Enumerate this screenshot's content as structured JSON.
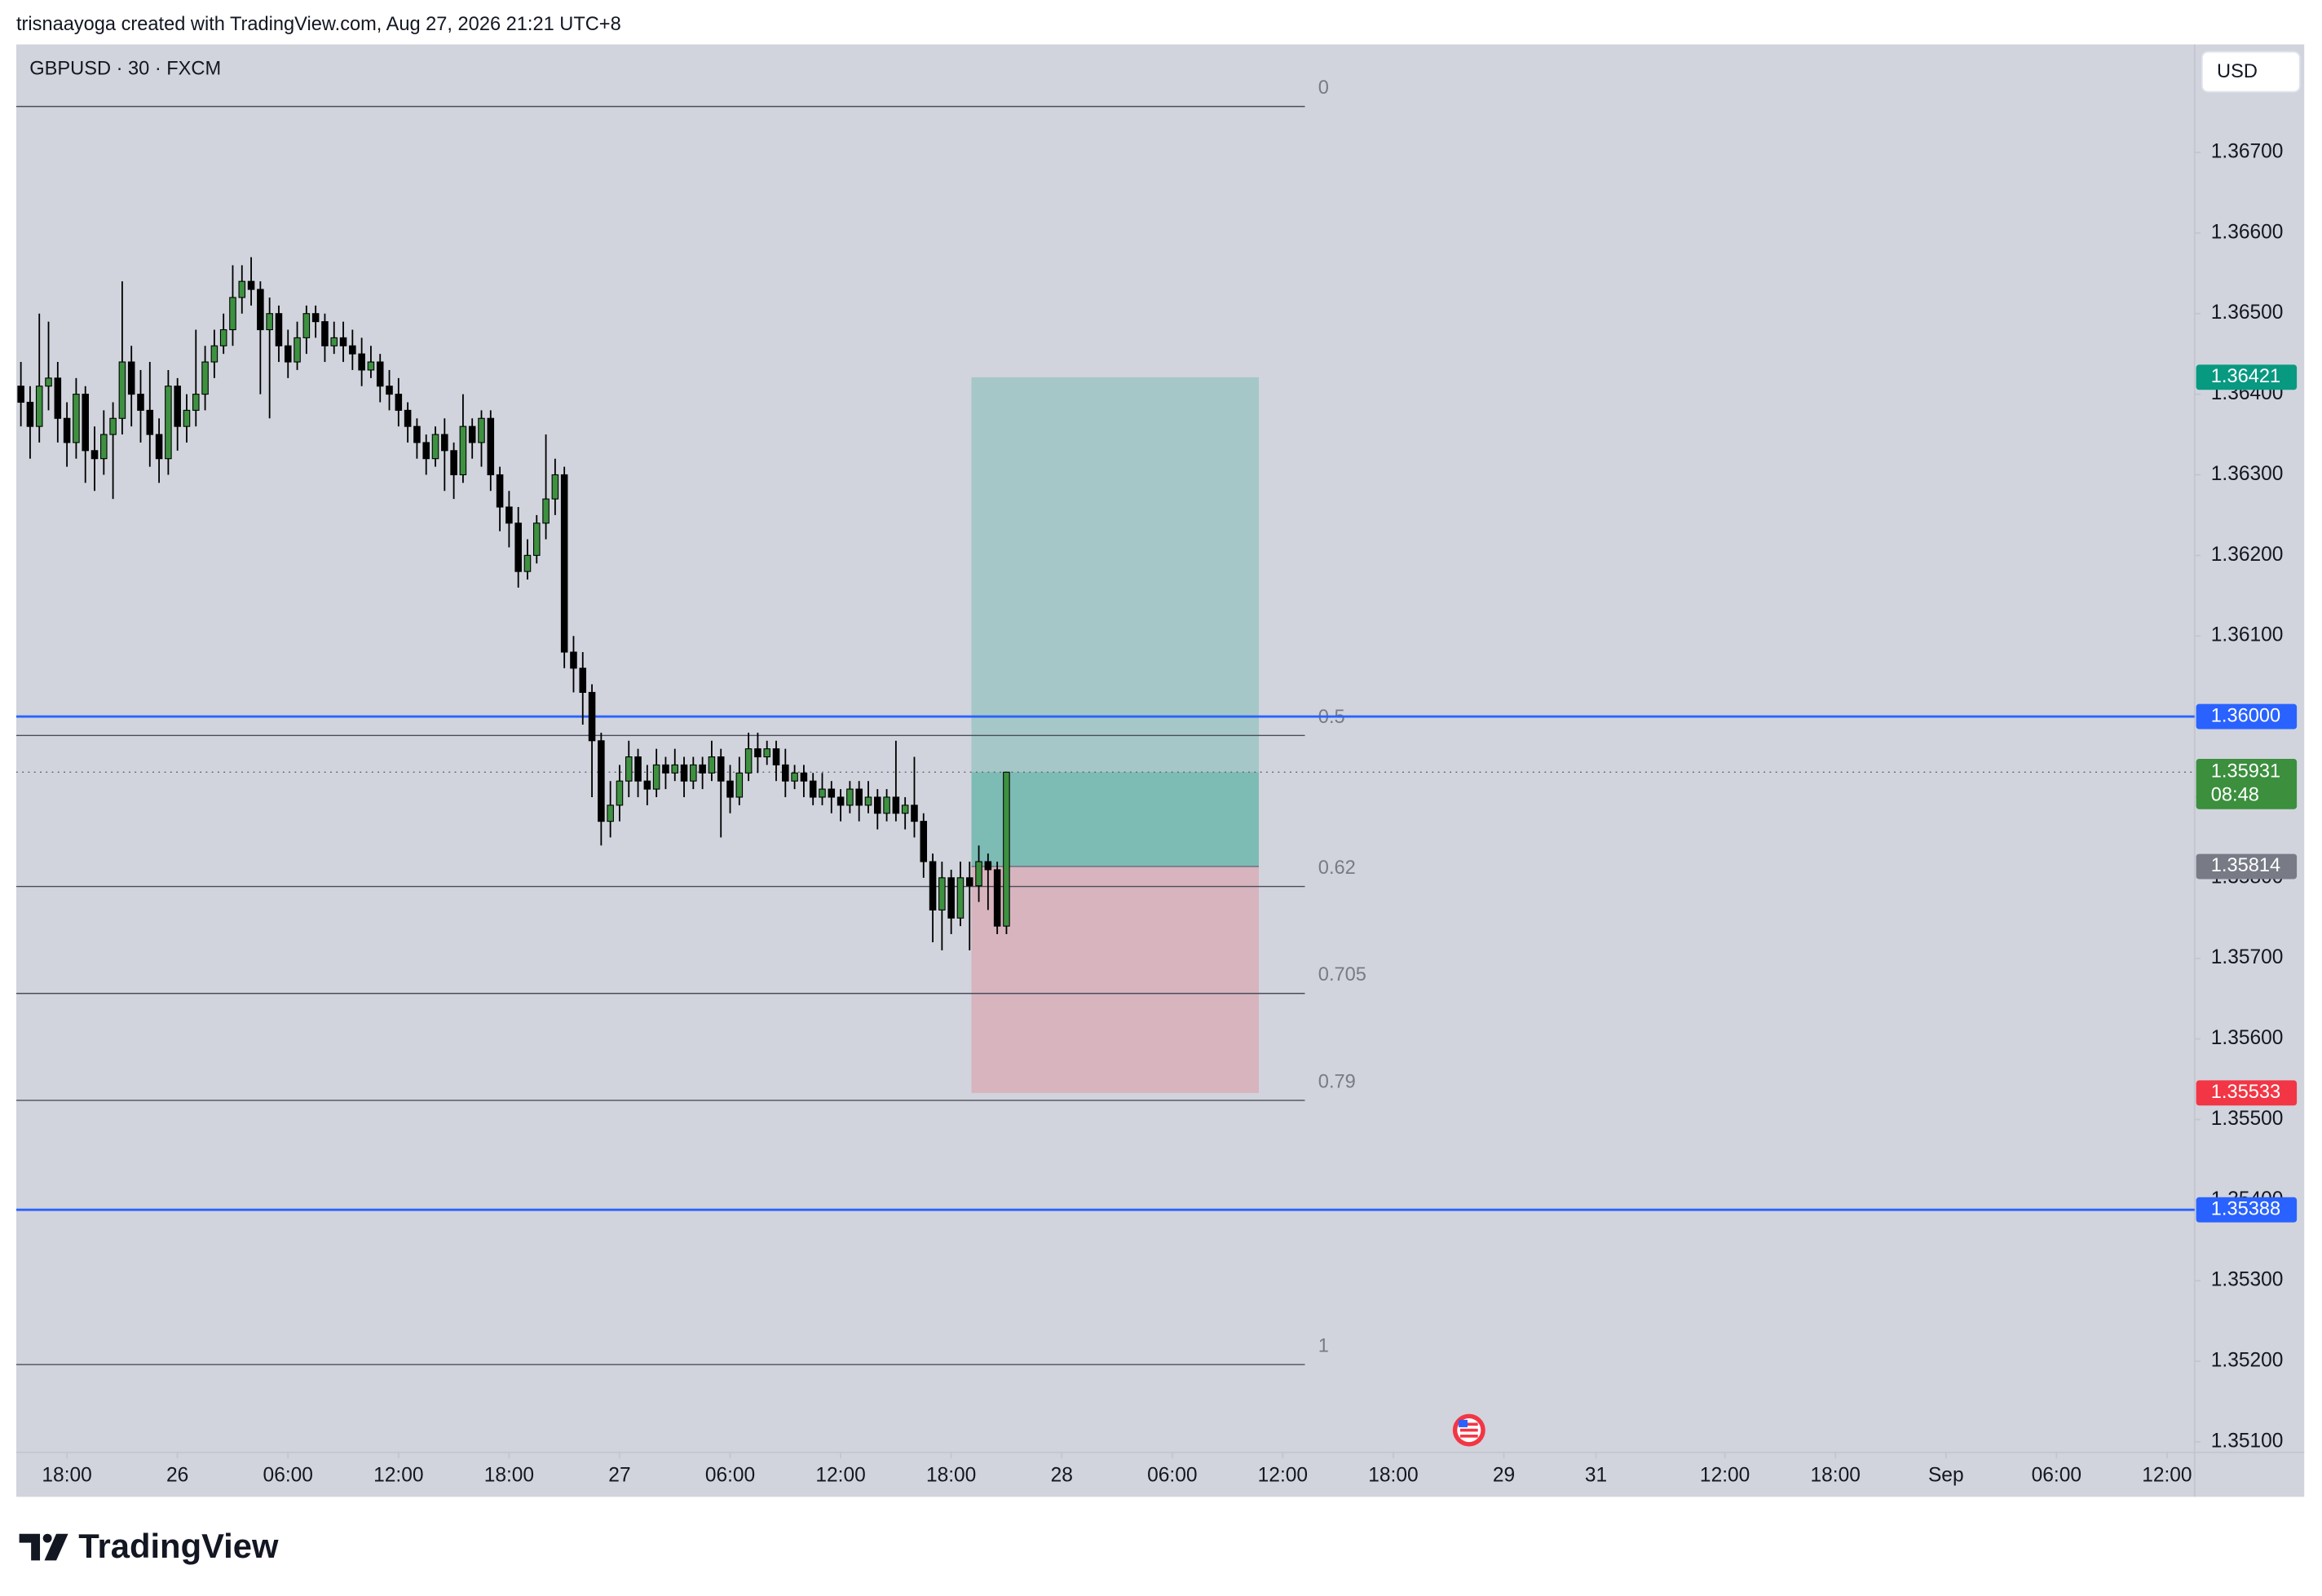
{
  "header": {
    "attribution": "trisnaayoga created with TradingView.com, Aug 27, 2026 21:21 UTC+8",
    "currency_button": "USD",
    "logo": "TradingView"
  },
  "chart_data": {
    "type": "candlestick",
    "title": "GBPUSD · 30 · FXCM",
    "up_color": "#3d9140",
    "down_color": "#000000",
    "open": [
      1.3641,
      1.3639,
      1.3636,
      1.3641,
      1.3642,
      1.3637,
      1.3634,
      1.364,
      1.3633,
      1.3632,
      1.3635,
      1.3637,
      1.3644,
      1.364,
      1.3638,
      1.3635,
      1.3632,
      1.3641,
      1.3636,
      1.3638,
      1.364,
      1.3644,
      1.3646,
      1.3648,
      1.3652,
      1.3654,
      1.3653,
      1.3648,
      1.365,
      1.3646,
      1.3644,
      1.3647,
      1.365,
      1.3649,
      1.3646,
      1.3647,
      1.3646,
      1.3645,
      1.3643,
      1.3644,
      1.3641,
      1.364,
      1.3638,
      1.3636,
      1.3634,
      1.3632,
      1.3635,
      1.3633,
      1.363,
      1.3636,
      1.3634,
      1.3637,
      1.363,
      1.3626,
      1.3624,
      1.3618,
      1.362,
      1.3624,
      1.3627,
      1.363,
      1.3608,
      1.3606,
      1.3603,
      1.3597,
      1.3587,
      1.3589,
      1.3592,
      1.3595,
      1.3592,
      1.3591,
      1.3594,
      1.3593,
      1.3594,
      1.3592,
      1.3594,
      1.3593,
      1.3595,
      1.3592,
      1.359,
      1.3593,
      1.3596,
      1.3595,
      1.3596,
      1.3594,
      1.3592,
      1.3593,
      1.3592,
      1.359,
      1.3591,
      1.359,
      1.3589,
      1.3591,
      1.3589,
      1.359,
      1.3588,
      1.359,
      1.3588,
      1.3589,
      1.3587,
      1.3582,
      1.3576,
      1.358,
      1.3575,
      1.358,
      1.3579,
      1.3582,
      1.3581,
      1.3574
    ],
    "high": [
      1.3644,
      1.3641,
      1.365,
      1.3649,
      1.3644,
      1.3639,
      1.3642,
      1.3641,
      1.3636,
      1.3638,
      1.3639,
      1.3654,
      1.3646,
      1.3643,
      1.3644,
      1.3637,
      1.3643,
      1.3642,
      1.364,
      1.3648,
      1.3646,
      1.3648,
      1.365,
      1.3656,
      1.3656,
      1.3657,
      1.3654,
      1.3652,
      1.3651,
      1.3648,
      1.3649,
      1.3651,
      1.3651,
      1.365,
      1.3649,
      1.3649,
      1.3648,
      1.3647,
      1.3646,
      1.3645,
      1.3643,
      1.3642,
      1.3639,
      1.3637,
      1.3635,
      1.3636,
      1.3637,
      1.3634,
      1.364,
      1.3637,
      1.3638,
      1.3638,
      1.3631,
      1.3628,
      1.3626,
      1.3622,
      1.3625,
      1.3635,
      1.3632,
      1.3631,
      1.361,
      1.3608,
      1.3604,
      1.3598,
      1.3592,
      1.3594,
      1.3597,
      1.3596,
      1.3594,
      1.3596,
      1.3595,
      1.3596,
      1.3595,
      1.3595,
      1.3595,
      1.3597,
      1.3596,
      1.3594,
      1.3595,
      1.3598,
      1.3598,
      1.3597,
      1.3597,
      1.3596,
      1.3594,
      1.3594,
      1.3593,
      1.3593,
      1.3592,
      1.3591,
      1.3592,
      1.3592,
      1.3592,
      1.3591,
      1.3591,
      1.3597,
      1.359,
      1.3595,
      1.3588,
      1.3583,
      1.3582,
      1.3581,
      1.3582,
      1.3582,
      1.3584,
      1.3583,
      1.3582,
      1.35931
    ],
    "low": [
      1.3636,
      1.3632,
      1.3634,
      1.3638,
      1.3634,
      1.3631,
      1.3632,
      1.3629,
      1.3628,
      1.363,
      1.3627,
      1.3635,
      1.3636,
      1.3634,
      1.3631,
      1.3629,
      1.363,
      1.3633,
      1.3634,
      1.3636,
      1.3638,
      1.3642,
      1.3645,
      1.3646,
      1.365,
      1.3651,
      1.364,
      1.3637,
      1.3644,
      1.3642,
      1.3643,
      1.3645,
      1.3647,
      1.3644,
      1.3645,
      1.3644,
      1.3643,
      1.3641,
      1.3642,
      1.3639,
      1.3638,
      1.3636,
      1.3634,
      1.3632,
      1.363,
      1.3631,
      1.3628,
      1.3627,
      1.3629,
      1.3632,
      1.3631,
      1.3628,
      1.3623,
      1.3621,
      1.3616,
      1.3617,
      1.3619,
      1.3622,
      1.3625,
      1.3606,
      1.3603,
      1.3599,
      1.359,
      1.3584,
      1.3585,
      1.3587,
      1.359,
      1.359,
      1.3589,
      1.359,
      1.3591,
      1.3592,
      1.359,
      1.3591,
      1.3591,
      1.3592,
      1.3585,
      1.3588,
      1.3589,
      1.3592,
      1.3593,
      1.3594,
      1.3592,
      1.359,
      1.3591,
      1.359,
      1.3589,
      1.3589,
      1.3588,
      1.3587,
      1.3588,
      1.3587,
      1.3588,
      1.3586,
      1.3587,
      1.3587,
      1.3586,
      1.3585,
      1.358,
      1.3572,
      1.3571,
      1.3573,
      1.3574,
      1.3571,
      1.3577,
      1.3576,
      1.3573,
      1.3573
    ],
    "close": [
      1.3639,
      1.3636,
      1.3641,
      1.3642,
      1.3637,
      1.3634,
      1.364,
      1.3633,
      1.3632,
      1.3635,
      1.3637,
      1.3644,
      1.364,
      1.3638,
      1.3635,
      1.3632,
      1.3641,
      1.3636,
      1.3638,
      1.364,
      1.3644,
      1.3646,
      1.3648,
      1.3652,
      1.3654,
      1.3653,
      1.3648,
      1.365,
      1.3646,
      1.3644,
      1.3647,
      1.365,
      1.3649,
      1.3646,
      1.3647,
      1.3646,
      1.3645,
      1.3643,
      1.3644,
      1.3641,
      1.364,
      1.3638,
      1.3636,
      1.3634,
      1.3632,
      1.3635,
      1.3633,
      1.363,
      1.3636,
      1.3634,
      1.3637,
      1.363,
      1.3626,
      1.3624,
      1.3618,
      1.362,
      1.3624,
      1.3627,
      1.363,
      1.3608,
      1.3606,
      1.3603,
      1.3597,
      1.3587,
      1.3589,
      1.3592,
      1.3595,
      1.3592,
      1.3591,
      1.3594,
      1.3593,
      1.3594,
      1.3592,
      1.3594,
      1.3593,
      1.3595,
      1.3592,
      1.359,
      1.3593,
      1.3596,
      1.3595,
      1.3596,
      1.3594,
      1.3592,
      1.3593,
      1.3592,
      1.359,
      1.3591,
      1.359,
      1.3589,
      1.3591,
      1.3589,
      1.359,
      1.3588,
      1.359,
      1.3588,
      1.3589,
      1.3587,
      1.3582,
      1.3576,
      1.358,
      1.3575,
      1.358,
      1.3579,
      1.3582,
      1.3581,
      1.3574,
      1.35931
    ],
    "xlim": [
      -0.5,
      236
    ],
    "xticks": [
      {
        "value": 5,
        "label": "18:00"
      },
      {
        "value": 17,
        "label": "26"
      },
      {
        "value": 29,
        "label": "06:00"
      },
      {
        "value": 41,
        "label": "12:00"
      },
      {
        "value": 53,
        "label": "18:00"
      },
      {
        "value": 65,
        "label": "27"
      },
      {
        "value": 77,
        "label": "06:00"
      },
      {
        "value": 89,
        "label": "12:00"
      },
      {
        "value": 101,
        "label": "18:00"
      },
      {
        "value": 113,
        "label": "28"
      },
      {
        "value": 125,
        "label": "06:00"
      },
      {
        "value": 137,
        "label": "12:00"
      },
      {
        "value": 149,
        "label": "18:00"
      },
      {
        "value": 161,
        "label": "29"
      },
      {
        "value": 171,
        "label": "31"
      },
      {
        "value": 185,
        "label": "12:00"
      },
      {
        "value": 197,
        "label": "18:00"
      },
      {
        "value": 209,
        "label": "Sep"
      },
      {
        "value": 221,
        "label": "06:00"
      },
      {
        "value": 233,
        "label": "12:00"
      }
    ],
    "ylim": [
      1.35087,
      1.36834
    ],
    "yticks": [
      {
        "value": 1.351,
        "label": "1.35100"
      },
      {
        "value": 1.352,
        "label": "1.35200"
      },
      {
        "value": 1.353,
        "label": "1.35300"
      },
      {
        "value": 1.354,
        "label": "1.35400"
      },
      {
        "value": 1.355,
        "label": "1.35500"
      },
      {
        "value": 1.356,
        "label": "1.35600"
      },
      {
        "value": 1.357,
        "label": "1.35700"
      },
      {
        "value": 1.358,
        "label": "1.35800"
      },
      {
        "value": 1.359,
        "label": "1.35900"
      },
      {
        "value": 1.36,
        "label": "1.36000"
      },
      {
        "value": 1.361,
        "label": "1.36100"
      },
      {
        "value": 1.362,
        "label": "1.36200"
      },
      {
        "value": 1.363,
        "label": "1.36300"
      },
      {
        "value": 1.364,
        "label": "1.36400"
      },
      {
        "value": 1.365,
        "label": "1.36500"
      },
      {
        "value": 1.366,
        "label": "1.36600"
      },
      {
        "value": 1.367,
        "label": "1.36700"
      }
    ],
    "grid": false,
    "fibonacci": {
      "price_0": 1.36757,
      "price_1": 1.35196,
      "ratios": [
        0,
        0.5,
        0.62,
        0.705,
        0.79,
        1
      ],
      "x_range": [
        -0.5,
        139.4
      ],
      "color": "#4a4e5a"
    },
    "horizontal_lines": [
      {
        "value": 1.36,
        "label": "1.36000",
        "color": "#2962ff"
      },
      {
        "value": 1.35388,
        "label": "1.35388",
        "color": "#2962ff"
      }
    ],
    "position": {
      "x_range": [
        103.2,
        134.4
      ],
      "entry": {
        "value": 1.35814,
        "label": "1.35814",
        "color": "#787b86"
      },
      "target": {
        "value": 1.36421,
        "label": "1.36421",
        "color": "#089981"
      },
      "stop": {
        "value": 1.35533,
        "label": "1.35533",
        "color": "#f23645"
      }
    },
    "current_price": {
      "value": 1.35931,
      "label": "1.35931",
      "countdown": "08:48",
      "color": "#3b8f3d"
    }
  }
}
